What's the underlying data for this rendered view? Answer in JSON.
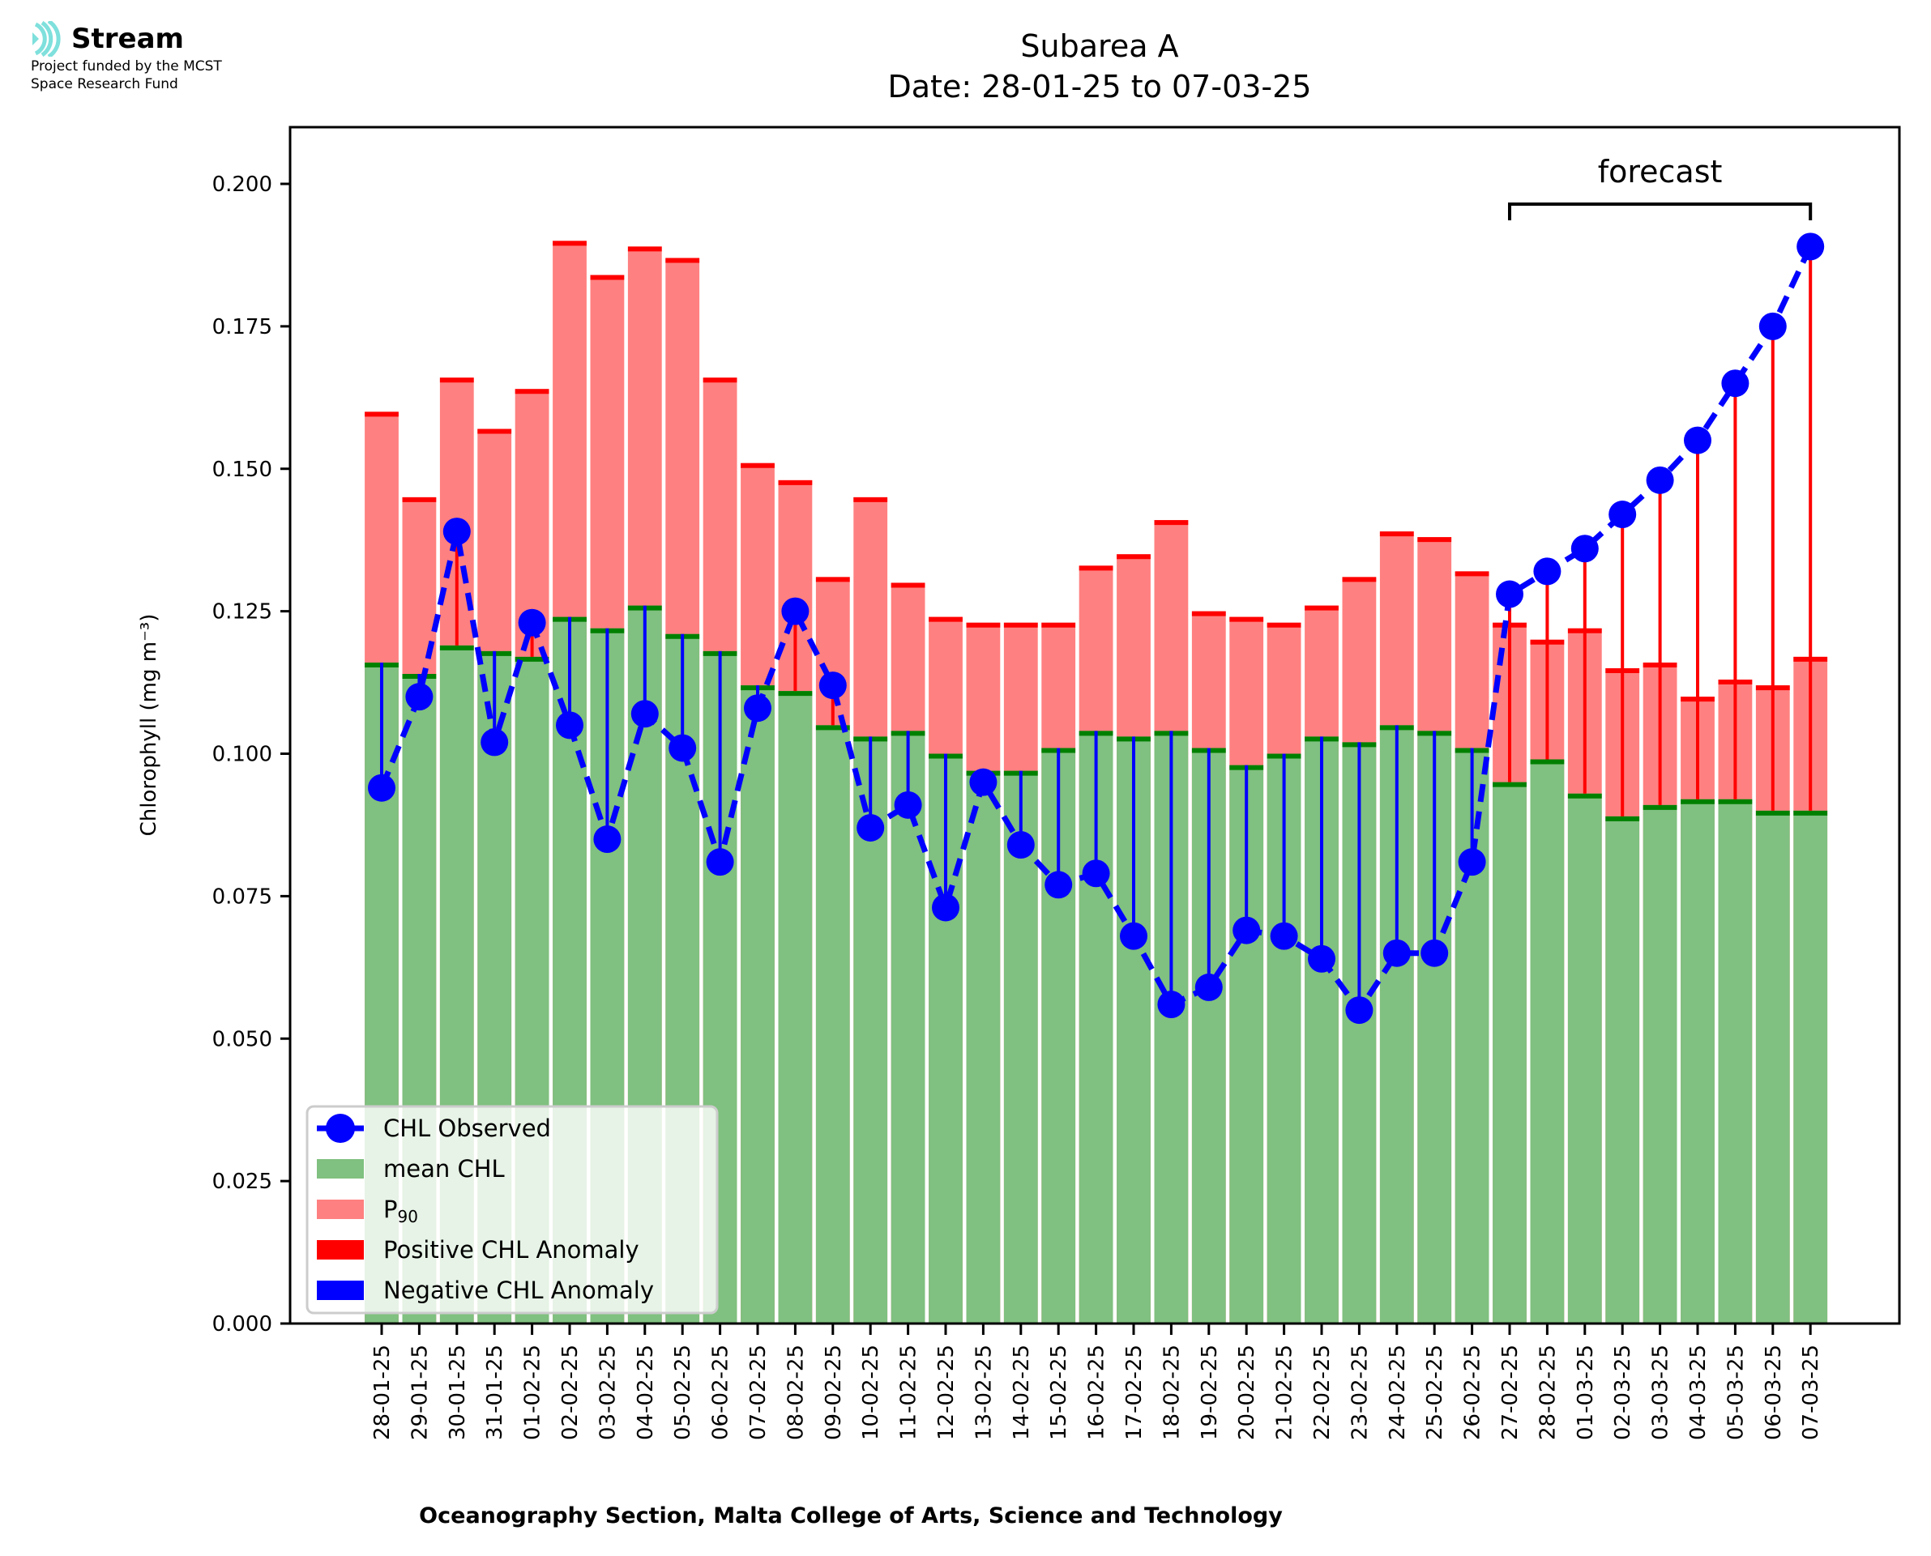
{
  "logo": {
    "name": "Stream",
    "subtitle_line1": "Project funded by the MCST",
    "subtitle_line2": "Space Research Fund",
    "icon": "stream-waves-icon",
    "color": "#7fe0dc"
  },
  "chart_data": {
    "type": "bar",
    "title": "Subarea A",
    "subtitle": "Date: 28-01-25 to 07-03-25",
    "xlabel": "Oceanography Section, Malta College of Arts, Science and Technology",
    "ylabel": "Chlorophyll (mg m⁻³)",
    "ylim": [
      0,
      0.21
    ],
    "yticks": [
      0.0,
      0.025,
      0.05,
      0.075,
      0.1,
      0.125,
      0.15,
      0.175,
      0.2
    ],
    "ytick_labels": [
      "0.000",
      "0.025",
      "0.050",
      "0.075",
      "0.100",
      "0.125",
      "0.150",
      "0.175",
      "0.200"
    ],
    "grid": false,
    "legend_position": "lower-left",
    "forecast_annotation": {
      "label": "forecast",
      "start_category": "27-02-25",
      "end_category": "07-03-25"
    },
    "colors": {
      "observed": "#0000ff",
      "mean": "#80c080",
      "mean_edge": "#008000",
      "p90": "#ff8080",
      "p90_edge": "#ff0000",
      "positive_anomaly": "#ff0000",
      "negative_anomaly": "#0000ff"
    },
    "categories": [
      "28-01-25",
      "29-01-25",
      "30-01-25",
      "31-01-25",
      "01-02-25",
      "02-02-25",
      "03-02-25",
      "04-02-25",
      "05-02-25",
      "06-02-25",
      "07-02-25",
      "08-02-25",
      "09-02-25",
      "10-02-25",
      "11-02-25",
      "12-02-25",
      "13-02-25",
      "14-02-25",
      "15-02-25",
      "16-02-25",
      "17-02-25",
      "18-02-25",
      "19-02-25",
      "20-02-25",
      "21-02-25",
      "22-02-25",
      "23-02-25",
      "24-02-25",
      "25-02-25",
      "26-02-25",
      "27-02-25",
      "28-02-25",
      "01-03-25",
      "02-03-25",
      "03-03-25",
      "04-03-25",
      "05-03-25",
      "06-03-25",
      "07-03-25"
    ],
    "series": [
      {
        "name": "CHL Observed",
        "type": "line-dashed-markers",
        "values": [
          0.094,
          0.11,
          0.139,
          0.102,
          0.123,
          0.105,
          0.085,
          0.107,
          0.101,
          0.081,
          0.108,
          0.125,
          0.112,
          0.087,
          0.091,
          0.073,
          0.095,
          0.084,
          0.077,
          0.079,
          0.068,
          0.056,
          0.059,
          0.069,
          0.068,
          0.064,
          0.055,
          0.065,
          0.065,
          0.081,
          0.128,
          0.132,
          0.136,
          0.142,
          0.148,
          0.155,
          0.165,
          0.175,
          0.189
        ]
      },
      {
        "name": "mean CHL",
        "type": "bar",
        "values": [
          0.116,
          0.114,
          0.119,
          0.118,
          0.117,
          0.124,
          0.122,
          0.126,
          0.121,
          0.118,
          0.112,
          0.111,
          0.105,
          0.103,
          0.104,
          0.1,
          0.097,
          0.097,
          0.101,
          0.104,
          0.103,
          0.104,
          0.101,
          0.098,
          0.1,
          0.103,
          0.102,
          0.105,
          0.104,
          0.101,
          0.095,
          0.099,
          0.093,
          0.089,
          0.091,
          0.092,
          0.092,
          0.09,
          0.09
        ]
      },
      {
        "name": "P₉₀",
        "type": "bar",
        "values": [
          0.16,
          0.145,
          0.166,
          0.157,
          0.164,
          0.19,
          0.184,
          0.189,
          0.187,
          0.166,
          0.151,
          0.148,
          0.131,
          0.145,
          0.13,
          0.124,
          0.123,
          0.123,
          0.123,
          0.133,
          0.135,
          0.141,
          0.125,
          0.124,
          0.123,
          0.126,
          0.131,
          0.139,
          0.138,
          0.132,
          0.123,
          0.12,
          0.122,
          0.115,
          0.116,
          0.11,
          0.113,
          0.112,
          0.117
        ]
      }
    ],
    "legend": [
      {
        "label": "CHL Observed",
        "kind": "line-marker",
        "color": "#0000ff"
      },
      {
        "label": "mean CHL",
        "kind": "patch",
        "color": "#80c080"
      },
      {
        "label": "P",
        "sub": "90",
        "kind": "patch",
        "color": "#ff8080"
      },
      {
        "label": "Positive CHL Anomaly",
        "kind": "patch",
        "color": "#ff0000"
      },
      {
        "label": "Negative CHL Anomaly",
        "kind": "patch",
        "color": "#0000ff"
      }
    ]
  }
}
